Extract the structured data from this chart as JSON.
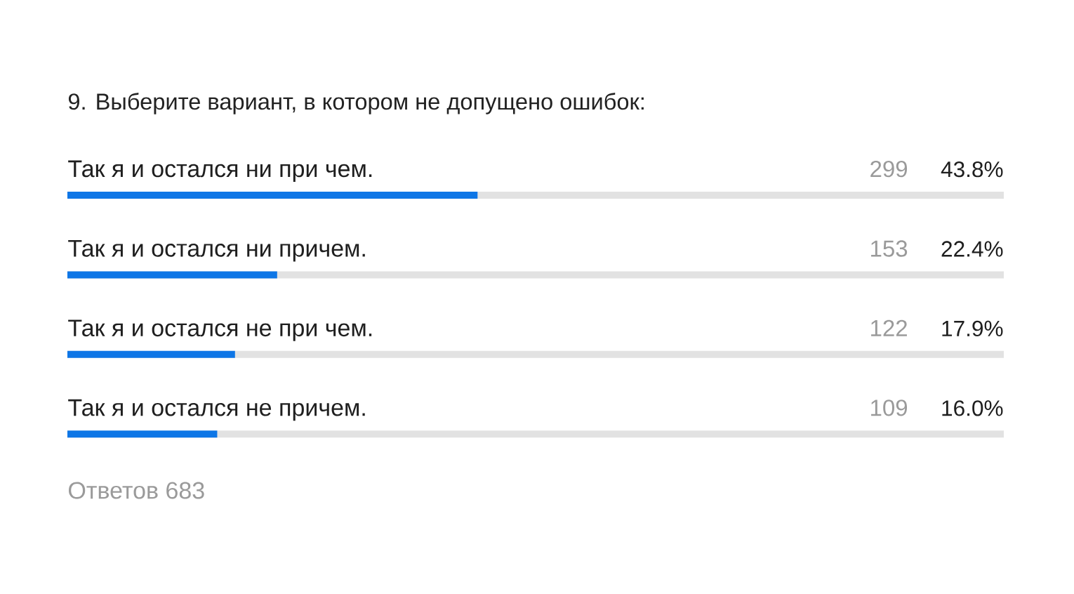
{
  "chart_data": {
    "type": "bar",
    "orientation": "horizontal",
    "title": "9. Выберите вариант, в котором не допущено ошибок:",
    "categories": [
      "Так я и остался ни при чем.",
      "Так я и остался ни причем.",
      "Так я и остался не при чем.",
      "Так я и остался не причем."
    ],
    "values": [
      43.8,
      22.4,
      17.9,
      16.0
    ],
    "value_labels": [
      "43.8%",
      "22.4%",
      "17.9%",
      "16.0%"
    ],
    "color": "#0e76e6",
    "xlim": [
      0,
      100
    ],
    "tick_labels": "y",
    "grid": "y",
    "annotations": [
      "299",
      "153",
      "122",
      "109",
      "Ответов 683"
    ]
  }
}
